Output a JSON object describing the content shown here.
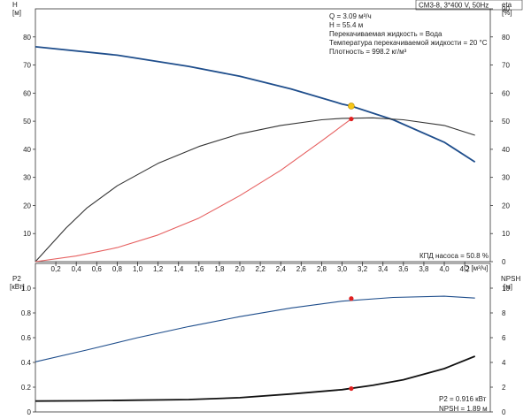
{
  "pump_label": "CM3-8, 3*400 V, 50Hz",
  "chart_data": [
    {
      "type": "line",
      "title": "",
      "x_label": "Q [м³/ч]",
      "x_ticks": [
        "0,2",
        "0,4",
        "0,6",
        "0,8",
        "1,0",
        "1,2",
        "1,4",
        "1,6",
        "1,8",
        "2,0",
        "2,2",
        "2,4",
        "2,6",
        "2,8",
        "3,0",
        "3,2",
        "3,4",
        "3,6",
        "3,8",
        "4,0",
        "4,2"
      ],
      "x_range": [
        0,
        4.45
      ],
      "y_left_label": "H",
      "y_left_unit": "[м]",
      "y_left_ticks": [
        "10",
        "20",
        "30",
        "40",
        "50",
        "60",
        "70",
        "80"
      ],
      "y_left_range": [
        0,
        90
      ],
      "y_right_label": "eta",
      "y_right_unit": "[%]",
      "y_right_ticks": [
        "0",
        "10",
        "20",
        "30",
        "40",
        "50",
        "60",
        "70",
        "80",
        "90"
      ],
      "y_right_range": [
        0,
        90
      ],
      "grid": false,
      "series": [
        {
          "axis": "left",
          "color": "#1f4e8c",
          "x": [
            0,
            0.8,
            1.5,
            2.0,
            2.5,
            3.0,
            3.09,
            3.5,
            4.0,
            4.3
          ],
          "y": [
            76.5,
            73.5,
            69.5,
            66,
            61.5,
            56.1,
            55.4,
            50.5,
            42.5,
            35.5
          ]
        },
        {
          "axis": "right",
          "color": "#333333",
          "x": [
            0,
            0.3,
            0.5,
            0.8,
            1.2,
            1.6,
            2.0,
            2.4,
            2.8,
            3.0,
            3.3,
            3.6,
            4.0,
            4.3
          ],
          "y": [
            0,
            12,
            19,
            27,
            35,
            41,
            45.5,
            48.5,
            50.5,
            51,
            51.2,
            50.5,
            48.5,
            45
          ]
        },
        {
          "axis": "left",
          "color": "#e66060",
          "x": [
            0,
            0.4,
            0.8,
            1.2,
            1.6,
            2.0,
            2.4,
            2.8,
            3.09
          ],
          "y": [
            0,
            2,
            5,
            9.5,
            15.5,
            23.5,
            32.5,
            43,
            50.8
          ]
        }
      ],
      "annotations": [
        {
          "text": "Q = 3.09 м³/ч"
        },
        {
          "text": "H = 55.4 м"
        },
        {
          "text": "Перекачиваемая жидкость = Вода"
        },
        {
          "text": "Температура перекачиваемой жидкости = 20 °C"
        },
        {
          "text": "Плотность = 998.2 кг/м³"
        },
        {
          "text": "КПД насоса = 50.8 %"
        }
      ],
      "operating_point": {
        "x": 3.09,
        "y": 55.4,
        "color": "#f5c518"
      },
      "eff_point": {
        "x": 3.09,
        "y": 50.8,
        "color": "#e02020"
      }
    },
    {
      "type": "line",
      "title": "",
      "x_range": [
        0,
        4.45
      ],
      "y_left_label": "P2",
      "y_left_unit": "[кВт]",
      "y_left_ticks": [
        "0",
        "0.2",
        "0.4",
        "0.6",
        "0.8",
        "1.0"
      ],
      "y_left_range": [
        0,
        1.2
      ],
      "y_right_label": "NPSH",
      "y_right_unit": "[м]",
      "y_right_ticks": [
        "0",
        "2",
        "4",
        "6",
        "8",
        "10"
      ],
      "y_right_range": [
        0,
        12
      ],
      "grid": false,
      "series": [
        {
          "axis": "left",
          "color": "#1f4e8c",
          "x": [
            0,
            0.5,
            1.0,
            1.5,
            2.0,
            2.5,
            3.0,
            3.5,
            4.0,
            4.3
          ],
          "y": [
            0.405,
            0.5,
            0.6,
            0.69,
            0.77,
            0.84,
            0.895,
            0.925,
            0.935,
            0.92
          ]
        },
        {
          "axis": "right",
          "color": "#111111",
          "x": [
            0,
            0.5,
            1.0,
            1.5,
            2.0,
            2.5,
            3.0,
            3.3,
            3.6,
            4.0,
            4.3
          ],
          "y": [
            0.88,
            0.9,
            0.95,
            1.0,
            1.15,
            1.45,
            1.8,
            2.15,
            2.6,
            3.5,
            4.5
          ]
        }
      ],
      "annotations": [
        {
          "text": "P2 = 0.916 кВт"
        },
        {
          "text": "NPSH = 1.89 м"
        }
      ],
      "points": [
        {
          "axis": "left",
          "x": 3.09,
          "y": 0.916,
          "color": "#e02020"
        },
        {
          "axis": "right",
          "x": 3.09,
          "y": 1.89,
          "color": "#e02020"
        }
      ]
    }
  ]
}
